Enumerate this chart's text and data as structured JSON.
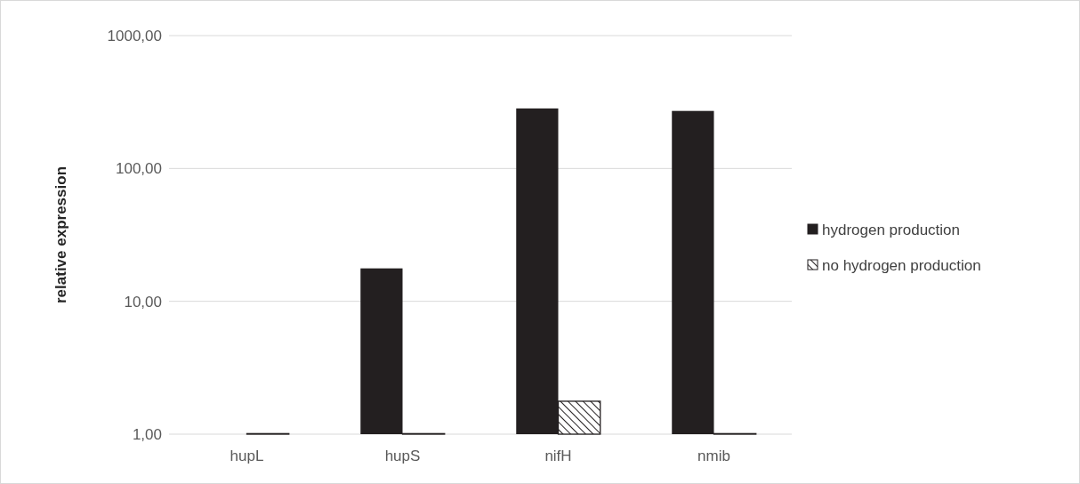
{
  "chart_data": {
    "type": "bar",
    "ylabel": "relative expression",
    "categories": [
      "hupL",
      "hupS",
      "nifH",
      "nmib"
    ],
    "series": [
      {
        "name": "hydrogen production",
        "color": "#231f20",
        "values": [
          null,
          17.7,
          283,
          271
        ]
      },
      {
        "name": "no hydrogen production",
        "color": "#231f20",
        "values": [
          1.01,
          1.01,
          1.77,
          1.01
        ]
      }
    ],
    "log": "y",
    "ylim": [
      1,
      1000
    ],
    "yticks": [
      {
        "value": 1,
        "label": "1,00"
      },
      {
        "value": 10,
        "label": "10,00"
      },
      {
        "value": 100,
        "label": "100,00"
      },
      {
        "value": 1000,
        "label": "1000,00"
      }
    ],
    "grid": "y",
    "legend": "right"
  }
}
